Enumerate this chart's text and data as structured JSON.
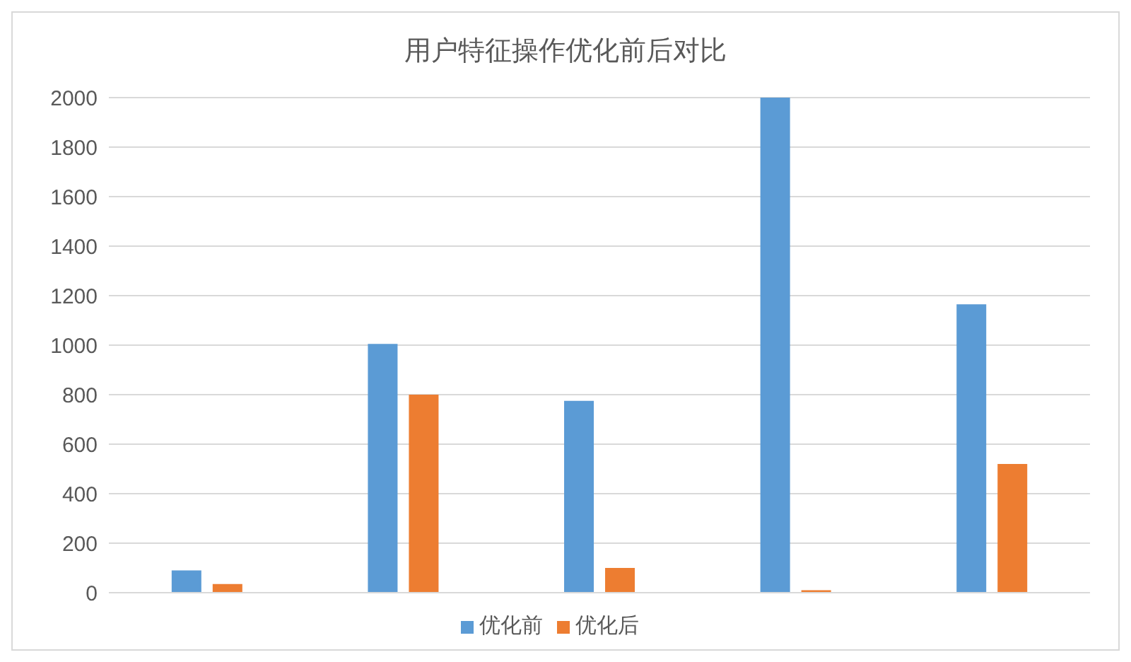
{
  "chart_data": {
    "type": "bar",
    "title": "用户特征操作优化前后对比",
    "categories": [
      null,
      null,
      null,
      null,
      null
    ],
    "series": [
      {
        "name": "优化前",
        "color": "#5b9bd5",
        "values": [
          90,
          1005,
          775,
          2000,
          1165
        ]
      },
      {
        "name": "优化后",
        "color": "#ed7d31",
        "values": [
          35,
          800,
          100,
          10,
          520
        ]
      }
    ],
    "ylim": [
      0,
      2000
    ],
    "yticks": [
      0,
      200,
      400,
      600,
      800,
      1000,
      1200,
      1400,
      1600,
      1800,
      2000
    ],
    "grid": "y",
    "legend": "bottom"
  }
}
